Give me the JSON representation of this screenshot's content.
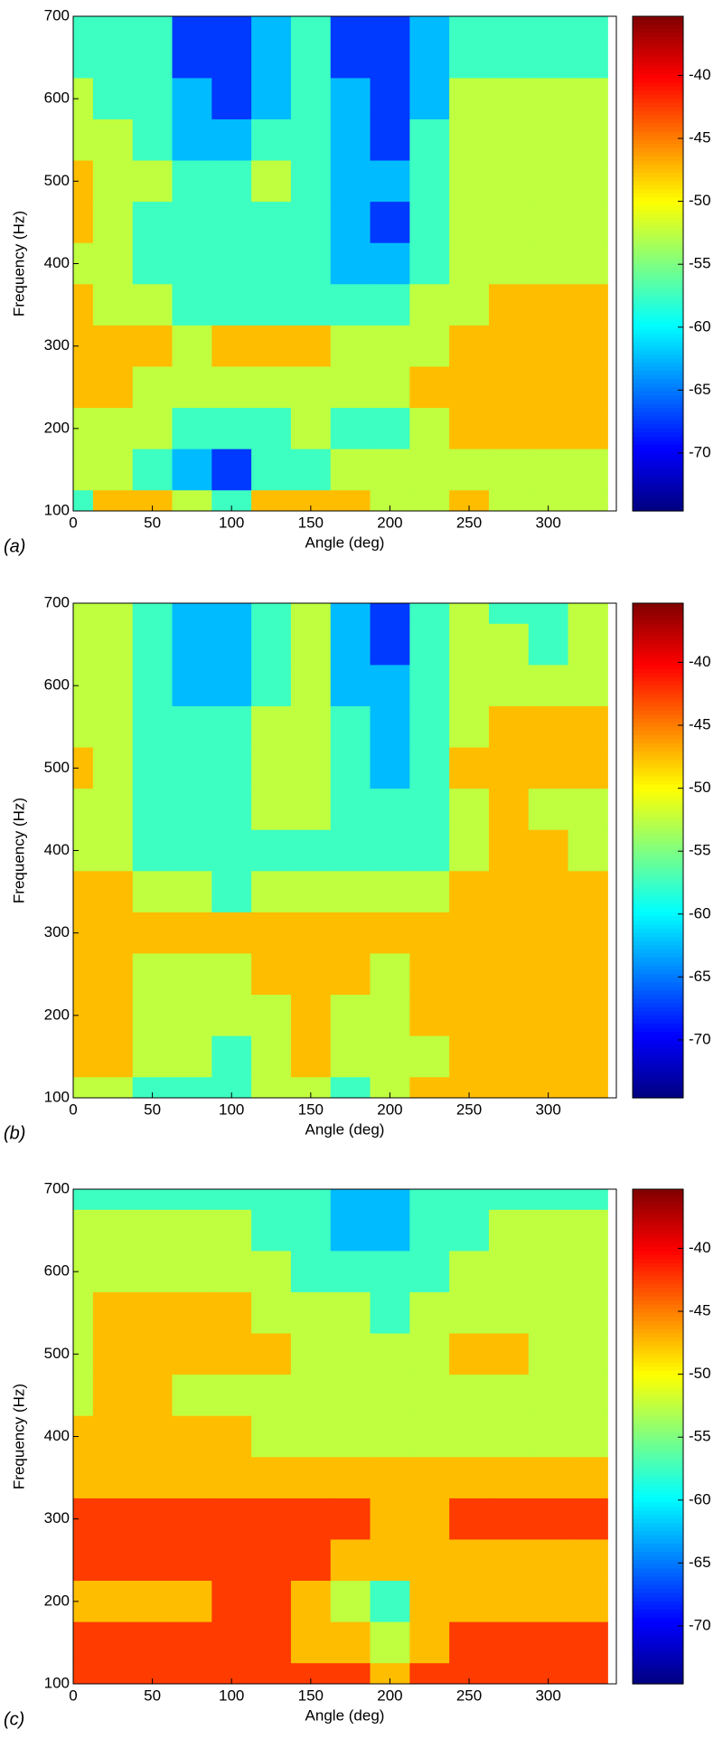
{
  "chart_data": [
    {
      "type": "contour",
      "colormap": "jet",
      "label": "(a)",
      "xlabel": "Angle (deg)",
      "ylabel": "Frequency (Hz)",
      "x": [
        0,
        25,
        50,
        75,
        100,
        125,
        150,
        175,
        200,
        225,
        250,
        275,
        300,
        325
      ],
      "y": [
        700,
        650,
        600,
        550,
        500,
        450,
        400,
        350,
        300,
        250,
        200,
        150,
        100
      ],
      "z": [
        [
          -58,
          -58,
          -60,
          -66,
          -68,
          -64,
          -59,
          -68,
          -70,
          -62,
          -58,
          -58,
          -58,
          -58
        ],
        [
          -58,
          -58,
          -60,
          -66,
          -68,
          -63,
          -59,
          -67,
          -69,
          -62,
          -58,
          -58,
          -58,
          -58
        ],
        [
          -55,
          -57,
          -59,
          -63,
          -66,
          -62,
          -59,
          -65,
          -67,
          -61,
          -55,
          -54,
          -54,
          -54
        ],
        [
          -53,
          -55,
          -57,
          -62,
          -62,
          -60,
          -58,
          -64,
          -66,
          -60,
          -54,
          -53,
          -53,
          -53
        ],
        [
          -49,
          -53,
          -55,
          -60,
          -58,
          -55,
          -58,
          -63,
          -65,
          -59,
          -54,
          -53,
          -53,
          -53
        ],
        [
          -49,
          -53,
          -56,
          -60,
          -59,
          -58,
          -59,
          -63,
          -66,
          -59,
          -54,
          -52,
          -52,
          -53
        ],
        [
          -53,
          -54,
          -56,
          -59,
          -60,
          -59,
          -59,
          -62,
          -64,
          -58,
          -53,
          -51,
          -51,
          -51
        ],
        [
          -50,
          -52,
          -54,
          -57,
          -58,
          -58,
          -58,
          -59,
          -59,
          -55,
          -52,
          -50,
          -49,
          -49
        ],
        [
          -46,
          -47,
          -50,
          -52,
          -50,
          -47,
          -50,
          -54,
          -55,
          -52,
          -50,
          -49,
          -48,
          -47
        ],
        [
          -50,
          -50,
          -51,
          -51,
          -52,
          -51,
          -52,
          -53,
          -52,
          -50,
          -49,
          -49,
          -49,
          -49
        ],
        [
          -52,
          -53,
          -55,
          -58,
          -60,
          -58,
          -54,
          -58,
          -56,
          -52,
          -50,
          -50,
          -49,
          -49
        ],
        [
          -54,
          -52,
          -56,
          -62,
          -70,
          -60,
          -58,
          -55,
          -55,
          -52,
          -51,
          -52,
          -54,
          -52
        ],
        [
          -58,
          -50,
          -47,
          -52,
          -59,
          -50,
          -47,
          -50,
          -52,
          -52,
          -47,
          -52,
          -52,
          -53
        ]
      ],
      "xlim": [
        0,
        343
      ],
      "ylim": [
        100,
        700
      ],
      "xticks": [
        0,
        50,
        100,
        150,
        200,
        250,
        300
      ],
      "yticks": [
        100,
        200,
        300,
        400,
        500,
        600,
        700
      ],
      "clim": [
        -74.6,
        -35.3
      ],
      "cticks": [
        -40,
        -45,
        -50,
        -55,
        -60,
        -65,
        -70
      ]
    },
    {
      "type": "contour",
      "colormap": "jet",
      "label": "(b)",
      "xlabel": "Angle (deg)",
      "ylabel": "Frequency (Hz)",
      "x": [
        0,
        25,
        50,
        75,
        100,
        125,
        150,
        175,
        200,
        225,
        250,
        275,
        300,
        325
      ],
      "y": [
        700,
        650,
        600,
        550,
        500,
        450,
        400,
        350,
        300,
        250,
        200,
        150,
        100
      ],
      "z": [
        [
          -55,
          -55,
          -58,
          -62,
          -64,
          -59,
          -55,
          -65,
          -67,
          -58,
          -55,
          -57,
          -57,
          -55
        ],
        [
          -54,
          -55,
          -58,
          -62,
          -63,
          -58,
          -55,
          -64,
          -66,
          -58,
          -55,
          -55,
          -56,
          -55
        ],
        [
          -53,
          -55,
          -58,
          -62,
          -62,
          -57,
          -55,
          -62,
          -64,
          -58,
          -55,
          -54,
          -54,
          -54
        ],
        [
          -51,
          -53,
          -57,
          -60,
          -59,
          -55,
          -53,
          -60,
          -62,
          -57,
          -52,
          -50,
          -50,
          -50
        ],
        [
          -50,
          -52,
          -57,
          -60,
          -58,
          -51,
          -53,
          -59,
          -61,
          -56,
          -50,
          -50,
          -50,
          -50
        ],
        [
          -51,
          -53,
          -57,
          -59,
          -58,
          -53,
          -54,
          -59,
          -60,
          -56,
          -51,
          -50,
          -51,
          -52
        ],
        [
          -52,
          -54,
          -56,
          -57,
          -58,
          -57,
          -57,
          -60,
          -60,
          -56,
          -51,
          -50,
          -50,
          -51
        ],
        [
          -50,
          -50,
          -52,
          -54,
          -56,
          -55,
          -54,
          -54,
          -53,
          -51,
          -50,
          -50,
          -50,
          -50
        ],
        [
          -48,
          -46,
          -49,
          -50,
          -50,
          -49,
          -47,
          -49,
          -50,
          -50,
          -50,
          -49,
          -49,
          -49
        ],
        [
          -47,
          -50,
          -51,
          -53,
          -53,
          -50,
          -47,
          -50,
          -53,
          -50,
          -50,
          -50,
          -50,
          -50
        ],
        [
          -46,
          -48,
          -51,
          -53,
          -54,
          -51,
          -48,
          -51,
          -53,
          -50,
          -49,
          -47,
          -48,
          -47
        ],
        [
          -50,
          -50,
          -52,
          -54,
          -56,
          -53,
          -50,
          -52,
          -53,
          -51,
          -49,
          -49,
          -50,
          -50
        ],
        [
          -52,
          -55,
          -58,
          -60,
          -58,
          -52,
          -55,
          -57,
          -55,
          -50,
          -50,
          -50,
          -50,
          -50
        ]
      ],
      "xlim": [
        0,
        343
      ],
      "ylim": [
        100,
        700
      ],
      "xticks": [
        0,
        50,
        100,
        150,
        200,
        250,
        300
      ],
      "yticks": [
        100,
        200,
        300,
        400,
        500,
        600,
        700
      ],
      "clim": [
        -74.6,
        -35.3
      ],
      "cticks": [
        -40,
        -45,
        -50,
        -55,
        -60,
        -65,
        -70
      ]
    },
    {
      "type": "contour",
      "colormap": "jet",
      "label": "(c)",
      "xlabel": "Angle (deg)",
      "ylabel": "Frequency (Hz)",
      "x": [
        0,
        25,
        50,
        75,
        100,
        125,
        150,
        175,
        200,
        225,
        250,
        275,
        300,
        325
      ],
      "y": [
        700,
        650,
        600,
        550,
        500,
        450,
        400,
        350,
        300,
        250,
        200,
        150,
        100
      ],
      "z": [
        [
          -56,
          -56,
          -56,
          -56,
          -56,
          -58,
          -60,
          -62,
          -64,
          -60,
          -56,
          -56,
          -56,
          -56
        ],
        [
          -53,
          -54,
          -54,
          -55,
          -55,
          -57,
          -59,
          -61,
          -62,
          -59,
          -56,
          -55,
          -55,
          -55
        ],
        [
          -52,
          -52,
          -51,
          -52,
          -52,
          -54,
          -56,
          -58,
          -59,
          -57,
          -55,
          -54,
          -54,
          -54
        ],
        [
          -51,
          -50,
          -50,
          -50,
          -49,
          -51,
          -53,
          -55,
          -56,
          -53,
          -51,
          -51,
          -52,
          -53
        ],
        [
          -51,
          -49,
          -49,
          -49,
          -49,
          -50,
          -52,
          -53,
          -54,
          -51,
          -49,
          -50,
          -51,
          -52
        ],
        [
          -51,
          -50,
          -50,
          -51,
          -51,
          -51,
          -52,
          -52,
          -53,
          -52,
          -51,
          -51,
          -52,
          -53
        ],
        [
          -48,
          -49,
          -50,
          -50,
          -50,
          -51,
          -51,
          -51,
          -51,
          -52,
          -52,
          -52,
          -53,
          -53
        ],
        [
          -47,
          -48,
          -48,
          -48,
          -48,
          -48,
          -49,
          -49,
          -49,
          -49,
          -49,
          -49,
          -49,
          -49
        ],
        [
          -44,
          -43,
          -42,
          -43,
          -42,
          -41,
          -43,
          -45,
          -46,
          -46,
          -45,
          -44,
          -43,
          -44
        ],
        [
          -45,
          -45,
          -44,
          -45,
          -44,
          -44,
          -45,
          -47,
          -49,
          -48,
          -47,
          -47,
          -47,
          -47
        ],
        [
          -46,
          -46,
          -46,
          -46,
          -45,
          -45,
          -47,
          -53,
          -58,
          -50,
          -47,
          -46,
          -46,
          -46
        ],
        [
          -44,
          -44,
          -43,
          -44,
          -44,
          -44,
          -46,
          -50,
          -52,
          -47,
          -45,
          -45,
          -45,
          -45
        ],
        [
          -45,
          -44,
          -43,
          -42,
          -41,
          -42,
          -43,
          -45,
          -46,
          -44,
          -43,
          -44,
          -45,
          -45
        ]
      ],
      "xlim": [
        0,
        343
      ],
      "ylim": [
        100,
        700
      ],
      "xticks": [
        0,
        50,
        100,
        150,
        200,
        250,
        300
      ],
      "yticks": [
        100,
        200,
        300,
        400,
        500,
        600,
        700
      ],
      "clim": [
        -74.6,
        -35.3
      ],
      "cticks": [
        -40,
        -45,
        -50,
        -55,
        -60,
        -65,
        -70
      ]
    }
  ]
}
